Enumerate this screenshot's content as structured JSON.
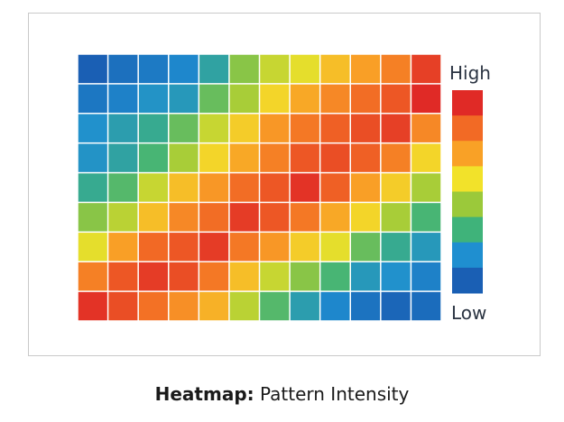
{
  "chart_data": {
    "type": "heatmap",
    "rows": 9,
    "cols": 12,
    "value_range": [
      0,
      1
    ],
    "values": [
      [
        0.0,
        0.05,
        0.08,
        0.12,
        0.22,
        0.4,
        0.5,
        0.55,
        0.65,
        0.72,
        0.8,
        0.95
      ],
      [
        0.07,
        0.1,
        0.16,
        0.18,
        0.35,
        0.45,
        0.6,
        0.7,
        0.78,
        0.85,
        0.9,
        1.0
      ],
      [
        0.15,
        0.2,
        0.25,
        0.35,
        0.5,
        0.62,
        0.74,
        0.82,
        0.88,
        0.92,
        0.95,
        0.78
      ],
      [
        0.16,
        0.22,
        0.3,
        0.45,
        0.6,
        0.7,
        0.8,
        0.9,
        0.92,
        0.88,
        0.8,
        0.6
      ],
      [
        0.25,
        0.32,
        0.5,
        0.65,
        0.74,
        0.85,
        0.9,
        0.98,
        0.88,
        0.72,
        0.62,
        0.45
      ],
      [
        0.4,
        0.48,
        0.65,
        0.78,
        0.85,
        0.96,
        0.9,
        0.82,
        0.7,
        0.6,
        0.45,
        0.3
      ],
      [
        0.55,
        0.72,
        0.86,
        0.9,
        0.96,
        0.82,
        0.74,
        0.62,
        0.55,
        0.35,
        0.25,
        0.18
      ],
      [
        0.8,
        0.9,
        0.96,
        0.92,
        0.82,
        0.65,
        0.5,
        0.4,
        0.3,
        0.18,
        0.15,
        0.1
      ],
      [
        0.98,
        0.92,
        0.84,
        0.76,
        0.68,
        0.48,
        0.32,
        0.2,
        0.12,
        0.06,
        0.02,
        0.04
      ]
    ],
    "color_scale": [
      "#1a5fb4",
      "#1f8fd0",
      "#3fb37a",
      "#9bc93a",
      "#f2e22a",
      "#f9a126",
      "#f26a25",
      "#e02a26"
    ],
    "legend": {
      "high_label": "High",
      "low_label": "Low",
      "position": "right"
    },
    "grid": false
  },
  "caption": {
    "bold": "Heatmap:",
    "rest": " Pattern Intensity"
  }
}
